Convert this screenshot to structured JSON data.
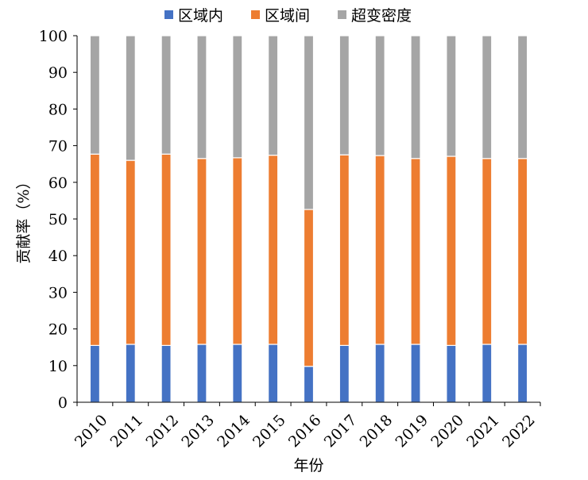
{
  "chart_data": {
    "type": "bar",
    "stacked": true,
    "percent_stacked": true,
    "title": "",
    "xlabel": "年份",
    "ylabel": "贡献率（%）",
    "ylim": [
      0,
      100
    ],
    "yticks": [
      0,
      10,
      20,
      30,
      40,
      50,
      60,
      70,
      80,
      90,
      100
    ],
    "grid": false,
    "legend_position": "top",
    "categories": [
      "2010",
      "2011",
      "2012",
      "2013",
      "2014",
      "2015",
      "2016",
      "2017",
      "2018",
      "2019",
      "2020",
      "2021",
      "2022"
    ],
    "series": [
      {
        "name": "区域内",
        "color": "#4472C4",
        "values": [
          15.5,
          15.8,
          15.5,
          15.8,
          15.8,
          15.8,
          9.8,
          15.5,
          15.8,
          15.8,
          15.5,
          15.8,
          15.8
        ]
      },
      {
        "name": "区域间",
        "color": "#ED7D31",
        "values": [
          52.2,
          50.2,
          52.2,
          50.7,
          50.9,
          51.6,
          42.8,
          52.0,
          51.5,
          50.7,
          51.6,
          50.7,
          50.7
        ]
      },
      {
        "name": "超变密度",
        "color": "#A5A5A5",
        "values": [
          32.3,
          34.0,
          32.3,
          33.5,
          33.3,
          32.6,
          47.4,
          32.5,
          32.7,
          33.5,
          32.9,
          33.5,
          33.5
        ]
      }
    ]
  }
}
